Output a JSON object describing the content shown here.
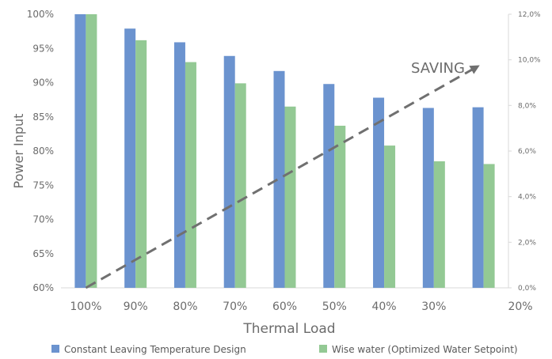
{
  "chart_data": {
    "type": "bar",
    "title": "",
    "xlabel": "Thermal Load",
    "ylabel": "Power Input",
    "categories": [
      "100%",
      "90%",
      "80%",
      "70%",
      "60%",
      "50%",
      "40%",
      "30%",
      "20%"
    ],
    "series": [
      {
        "name": "Constant Leaving Temperature Design",
        "values": [
          100,
          97.9,
          95.9,
          93.9,
          91.7,
          89.8,
          87.8,
          86.3,
          86.4
        ],
        "color": "#6b93cf"
      },
      {
        "name": "Wise water (Optimized Water Setpoint)",
        "values": [
          100,
          96.2,
          93.0,
          89.9,
          86.5,
          83.7,
          80.8,
          78.5,
          78.1
        ],
        "color": "#93c994"
      }
    ],
    "ylim": [
      60,
      100
    ],
    "yticks": [
      "60%",
      "65%",
      "70%",
      "75%",
      "80%",
      "85%",
      "90%",
      "95%",
      "100%"
    ],
    "y2lim": [
      0,
      12
    ],
    "y2ticks": [
      "0,0%",
      "2,0%",
      "4,0%",
      "6,0%",
      "8,0%",
      "10,0%",
      "12,0%"
    ],
    "annotation": {
      "text": "SAVING",
      "from": {
        "category": "100%",
        "y2": 0
      },
      "to": {
        "category": "20%",
        "y2": 9.7
      }
    },
    "grid": false,
    "legend": "bottom"
  }
}
